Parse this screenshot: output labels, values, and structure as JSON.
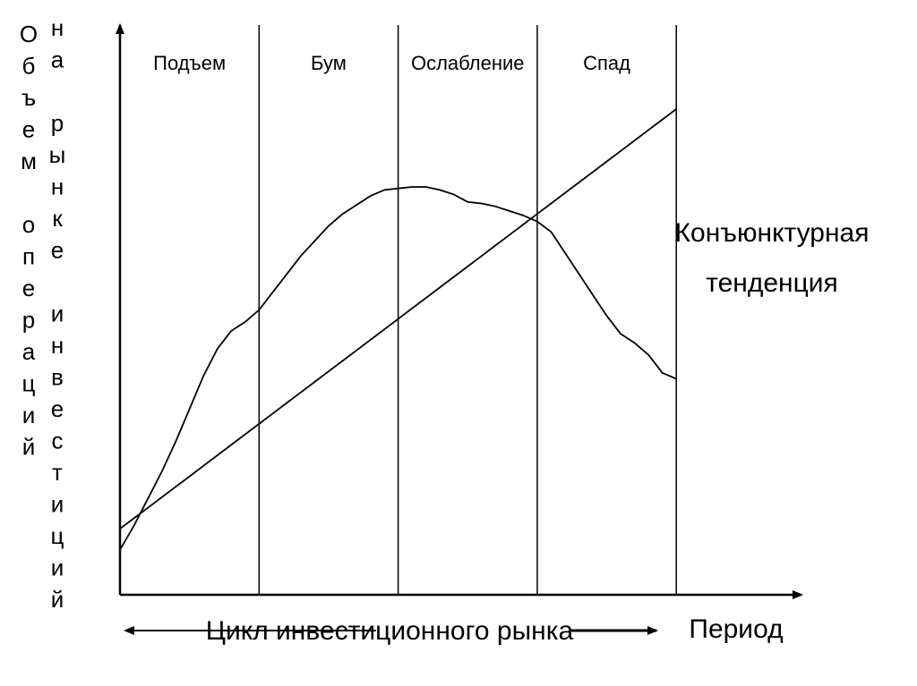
{
  "chart_data": {
    "type": "line",
    "ylabel_lines": [
      "Объем операций",
      "на рынке инвестиций"
    ],
    "xlabel": "Период",
    "cycle_label": "Цикл инвестиционного рынка",
    "phases": [
      "Подъем",
      "Бум",
      "Ослабление",
      "Спад"
    ],
    "x": [
      0,
      0.1,
      0.2,
      0.3,
      0.4,
      0.5,
      0.6,
      0.7,
      0.8,
      0.9,
      1.0,
      1.1,
      1.2,
      1.3,
      1.4,
      1.5,
      1.6,
      1.7,
      1.8,
      1.9,
      2.0,
      2.1,
      2.2,
      2.3,
      2.4,
      2.5,
      2.6,
      2.7,
      2.8,
      2.9,
      3.0,
      3.1,
      3.2,
      3.3,
      3.4,
      3.5,
      3.6,
      3.7,
      3.8,
      3.9,
      4.0
    ],
    "series": [
      {
        "values": [
          0.15,
          0.23,
          0.32,
          0.41,
          0.51,
          0.62,
          0.73,
          0.82,
          0.88,
          0.91,
          0.95,
          1.01,
          1.07,
          1.13,
          1.18,
          1.23,
          1.27,
          1.3,
          1.33,
          1.35,
          1.355,
          1.36,
          1.36,
          1.35,
          1.335,
          1.31,
          1.305,
          1.295,
          1.28,
          1.265,
          1.245,
          1.21,
          1.14,
          1.07,
          1.0,
          0.93,
          0.87,
          0.84,
          0.8,
          0.74,
          0.72
        ]
      },
      {
        "name": "Конъюнктурная тенденция",
        "values": [
          0.22,
          0.255,
          0.29,
          0.325,
          0.36,
          0.395,
          0.43,
          0.465,
          0.5,
          0.535,
          0.57,
          0.605,
          0.64,
          0.675,
          0.71,
          0.745,
          0.78,
          0.815,
          0.85,
          0.885,
          0.92,
          0.955,
          0.99,
          1.025,
          1.06,
          1.095,
          1.13,
          1.165,
          1.2,
          1.235,
          1.27,
          1.305,
          1.34,
          1.375,
          1.41,
          1.445,
          1.48,
          1.515,
          1.55,
          1.585,
          1.62
        ]
      }
    ],
    "xlim": [
      0,
      4.9
    ],
    "ylim": [
      0,
      1.9
    ],
    "grid": false,
    "phase_boundaries": [
      1,
      2,
      3,
      4
    ]
  }
}
